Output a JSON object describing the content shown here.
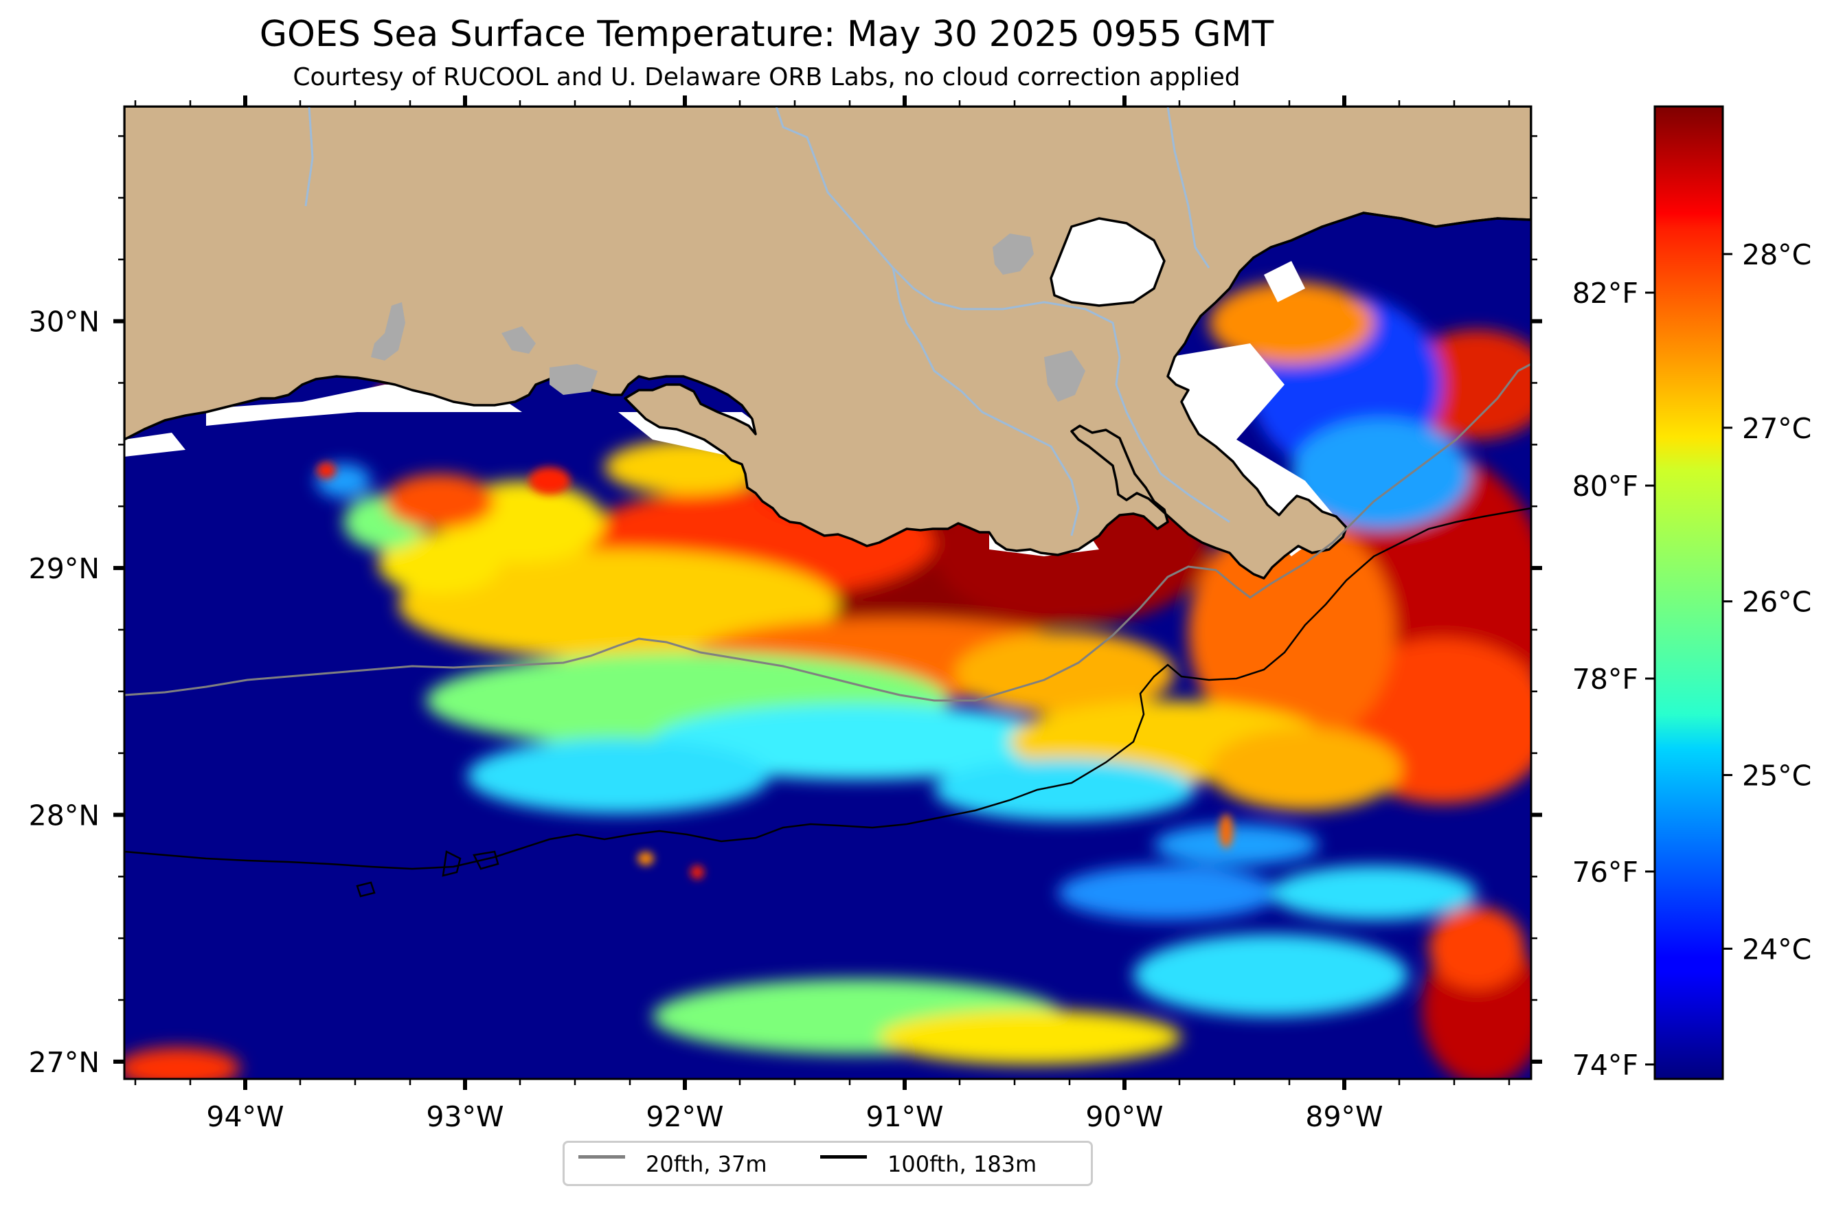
{
  "title": "GOES Sea Surface Temperature: May 30 2025 0955 GMT",
  "subtitle": "Courtesy of RUCOOL and U. Delaware ORB Labs, no cloud correction applied",
  "map": {
    "lon_range": [
      -94.55,
      -88.15
    ],
    "lat_range": [
      26.93,
      30.87
    ],
    "lon_ticks": [
      {
        "value": -94,
        "label": "94°W"
      },
      {
        "value": -93,
        "label": "93°W"
      },
      {
        "value": -92,
        "label": "92°W"
      },
      {
        "value": -91,
        "label": "91°W"
      },
      {
        "value": -90,
        "label": "90°W"
      },
      {
        "value": -89,
        "label": "89°W"
      }
    ],
    "lat_ticks": [
      {
        "value": 30,
        "label": "30°N"
      },
      {
        "value": 29,
        "label": "29°N"
      },
      {
        "value": 28,
        "label": "28°N"
      },
      {
        "value": 27,
        "label": "27°N"
      }
    ],
    "colors": {
      "land": "#cfb28b",
      "coast": "#000000",
      "rivers": "#9dbbd9",
      "lakes": "#aaaaaa",
      "no_data": "#ffffff"
    }
  },
  "colorbar": {
    "colormap": "jet",
    "range_c": [
      23.25,
      28.85
    ],
    "celsius_ticks": [
      {
        "value": 24,
        "label": "24°C"
      },
      {
        "value": 25,
        "label": "25°C"
      },
      {
        "value": 26,
        "label": "26°C"
      },
      {
        "value": 27,
        "label": "27°C"
      },
      {
        "value": 28,
        "label": "28°C"
      }
    ],
    "fahrenheit_ticks": [
      {
        "value": 74,
        "label": "74°F"
      },
      {
        "value": 76,
        "label": "76°F"
      },
      {
        "value": 78,
        "label": "78°F"
      },
      {
        "value": 80,
        "label": "80°F"
      },
      {
        "value": 82,
        "label": "82°F"
      }
    ]
  },
  "legend": {
    "items": [
      {
        "label": "20fth, 37m",
        "color": "#808080"
      },
      {
        "label": "100fth, 183m",
        "color": "#000000"
      }
    ]
  }
}
